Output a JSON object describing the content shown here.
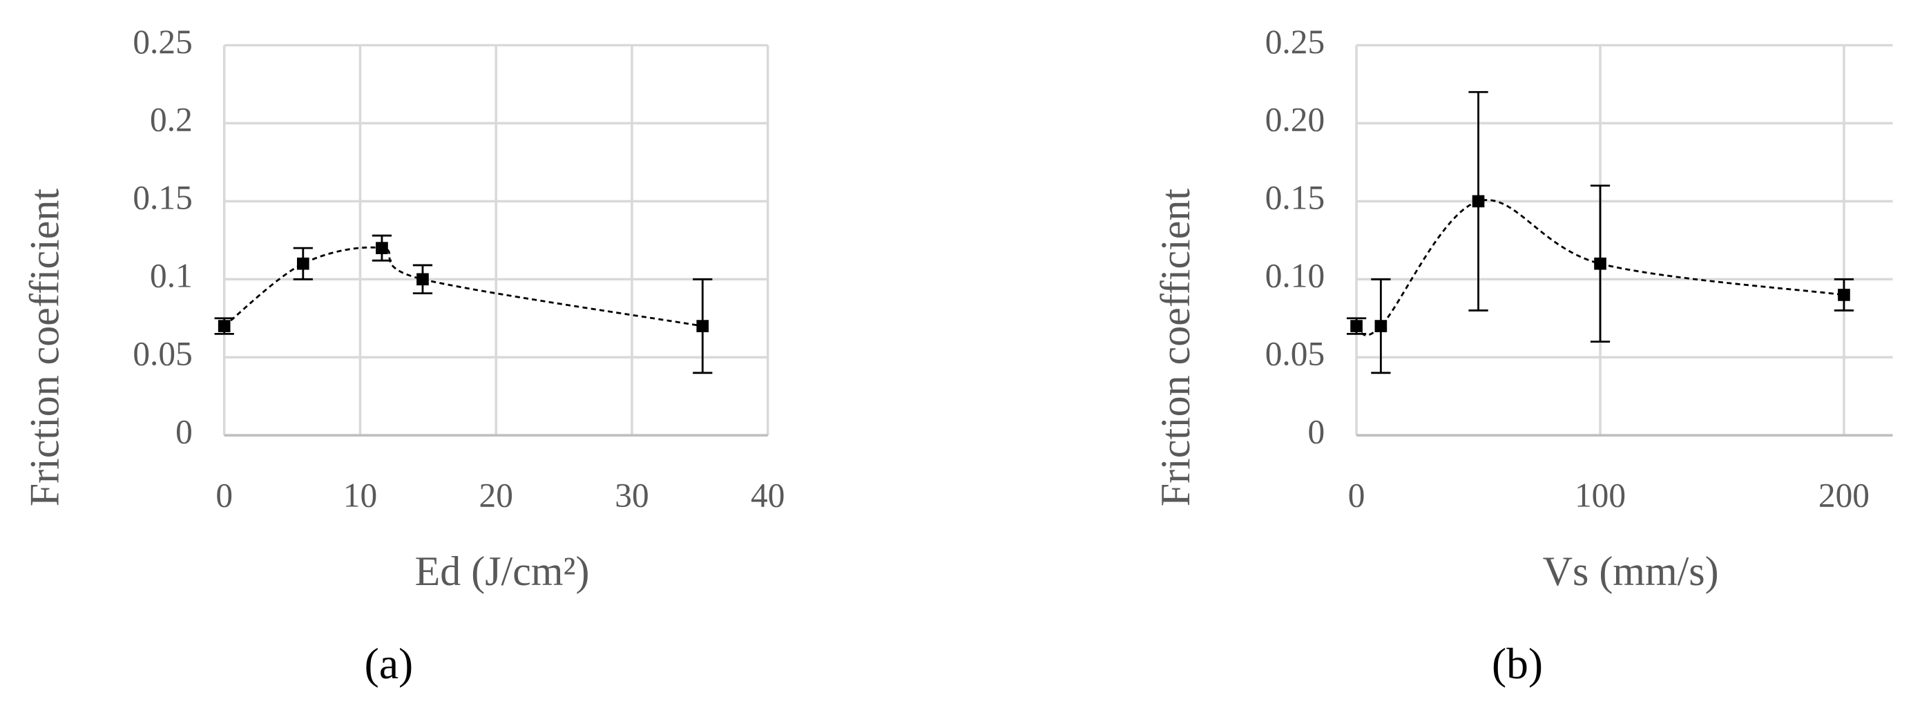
{
  "chart_data": [
    {
      "type": "line",
      "smooth": true,
      "dashed": true,
      "color": "#000000",
      "x": [
        0,
        5.8,
        11.6,
        14.6,
        35.2
      ],
      "values": [
        0.07,
        0.11,
        0.12,
        0.1,
        0.07
      ],
      "errors": [
        0.005,
        0.01,
        0.008,
        0.009,
        0.03
      ],
      "xlim": [
        0,
        40
      ],
      "xticks": [
        0,
        10,
        20,
        30,
        40
      ],
      "ylim": [
        0,
        0.25
      ],
      "yticks": [
        0,
        0.05,
        0.1,
        0.15,
        0.2,
        0.25
      ],
      "grid": true,
      "xlabel": "Ed (J/cm²)",
      "ylabel": "Friction coefficient",
      "panel_label": "(a)"
    },
    {
      "type": "line",
      "smooth": true,
      "dashed": true,
      "color": "#000000",
      "x": [
        0,
        10,
        50,
        100,
        200
      ],
      "values": [
        0.07,
        0.07,
        0.15,
        0.11,
        0.09
      ],
      "errors": [
        0.005,
        0.03,
        0.07,
        0.05,
        0.01
      ],
      "xlim": [
        0,
        220
      ],
      "xticks": [
        0,
        100,
        200
      ],
      "ylim": [
        0,
        0.25
      ],
      "yticks": [
        0,
        0.05,
        {
          "value": 0.1,
          "label": "0.10"
        },
        0.15,
        {
          "value": 0.2,
          "label": "0.20"
        },
        0.25
      ],
      "grid": true,
      "xlabel": "Vs (mm/s)",
      "ylabel": "Friction coefficient",
      "panel_label": "(b)"
    }
  ]
}
